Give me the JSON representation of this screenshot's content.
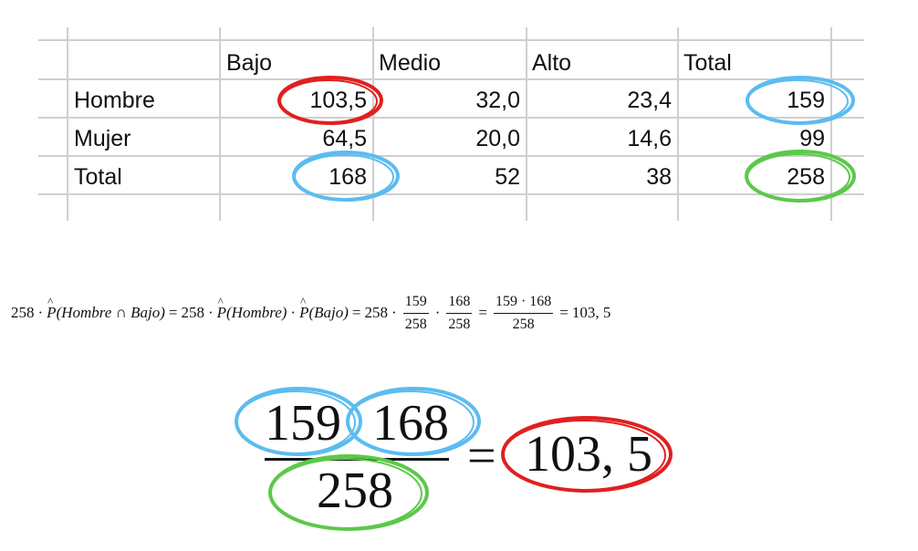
{
  "table": {
    "headers": [
      "",
      "Bajo",
      "Medio",
      "Alto",
      "Total"
    ],
    "rows": [
      {
        "label": "Hombre",
        "values": [
          "103,5",
          "32,0",
          "23,4",
          "159"
        ]
      },
      {
        "label": "Mujer",
        "values": [
          "64,5",
          "20,0",
          "14,6",
          "99"
        ]
      },
      {
        "label": "Total",
        "values": [
          "168",
          "52",
          "38",
          "258"
        ]
      }
    ]
  },
  "formula": {
    "factor": "258",
    "dot": "·",
    "p_symbol": "P",
    "arg_joint": "(Hombre ∩ Bajo)",
    "arg_hombre": "(Hombre)",
    "arg_bajo": "(Bajo)",
    "eq": "=",
    "frac1_num": "159",
    "frac1_den": "258",
    "frac2_num": "168",
    "frac2_den": "258",
    "frac3_num": "159 · 168",
    "frac3_den": "258",
    "result": "103, 5"
  },
  "big_fraction": {
    "numerator_left": "159",
    "numerator_right": "168",
    "denominator": "258",
    "equals": "=",
    "result": "103, 5"
  },
  "colors": {
    "red_mark": "#e02020",
    "blue_mark": "#5bbcf0",
    "green_mark": "#5cc84a",
    "grid": "#cfcfcf"
  }
}
